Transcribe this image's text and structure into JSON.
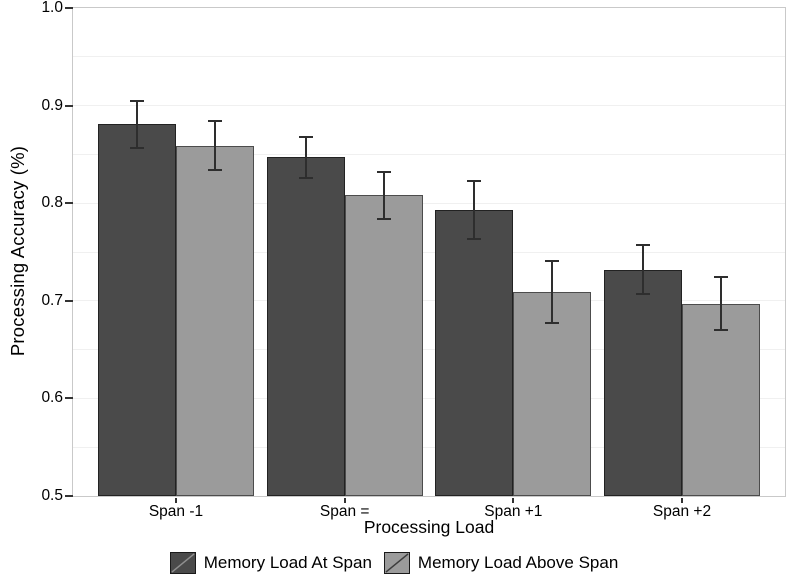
{
  "figure": {
    "y_axis": {
      "title": "Processing Accuracy (%)",
      "tick_labels": [
        "1.0",
        "0.9",
        "0.8",
        "0.7",
        "0.6",
        "0.5"
      ]
    },
    "x_axis": {
      "title": "Processing Load",
      "tick_labels": [
        "Span -1",
        "Span =",
        "Span +1",
        "Span +2"
      ]
    },
    "legend": {
      "items": [
        {
          "label": "Memory Load At Span",
          "swatch_fill": "#4a4a4a",
          "swatch_line": "#8f8f8f"
        },
        {
          "label": "Memory Load Above Span",
          "swatch_fill": "#9b9b9b",
          "swatch_line": "#3c3c3c"
        }
      ]
    }
  },
  "chart_data": {
    "type": "bar",
    "title": "",
    "categories": [
      "Span -1",
      "Span =",
      "Span +1",
      "Span +2"
    ],
    "series": [
      {
        "name": "Memory Load At Span",
        "color": "#4a4a4a",
        "border_color": "#222222",
        "values": [
          0.881,
          0.847,
          0.793,
          0.732
        ],
        "error": [
          0.025,
          0.022,
          0.031,
          0.026
        ]
      },
      {
        "name": "Memory Load Above Span",
        "color": "#9b9b9b",
        "border_color": "#4c4c4c",
        "values": [
          0.859,
          0.808,
          0.709,
          0.697
        ],
        "error": [
          0.026,
          0.025,
          0.033,
          0.028
        ]
      }
    ],
    "xlabel": "Processing Load",
    "ylabel": "Processing Accuracy (%)",
    "ylim": [
      0.5,
      1.0
    ],
    "y_tick_step": 0.1,
    "grid_step": 0.05,
    "grid": "horizontal",
    "legend_position": "bottom",
    "error_bars": true
  },
  "colors": {
    "grid": "#f0f0f0",
    "panel_border": "#c9c9c9",
    "error_bar": "#2e2e2e",
    "text": "#000000",
    "background": "#ffffff"
  }
}
